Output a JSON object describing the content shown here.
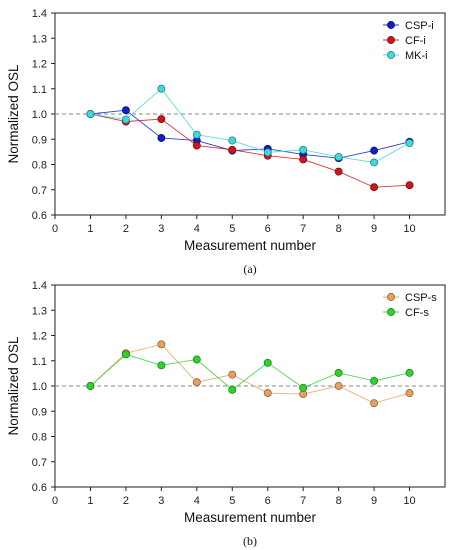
{
  "chart_data": [
    {
      "type": "line",
      "caption": "(a)",
      "xlabel": "Measurement number",
      "ylabel": "Normalized OSL",
      "xlim": [
        0,
        11
      ],
      "ylim": [
        0.6,
        1.4
      ],
      "xticks": [
        0,
        1,
        2,
        3,
        4,
        5,
        6,
        7,
        8,
        9,
        10
      ],
      "yticks": [
        0.6,
        0.7,
        0.8,
        0.9,
        1.0,
        1.1,
        1.2,
        1.3,
        1.4
      ],
      "ytick_labels": [
        "0.6",
        "0.7",
        "0.8",
        "0.9",
        "1.0",
        "1.1",
        "1.2",
        "1.3",
        "1.4"
      ],
      "reference_line": 1.0,
      "legend_position": "top-right",
      "x": [
        1,
        2,
        3,
        4,
        5,
        6,
        7,
        8,
        9,
        10
      ],
      "series": [
        {
          "name": "CSP-i",
          "color": "#1020c8",
          "values": [
            1.0,
            1.015,
            0.905,
            0.895,
            0.855,
            0.862,
            0.84,
            0.825,
            0.855,
            0.89
          ]
        },
        {
          "name": "CF-i",
          "color": "#d0141a",
          "values": [
            1.0,
            0.97,
            0.98,
            0.875,
            0.858,
            0.835,
            0.82,
            0.772,
            0.71,
            0.718
          ]
        },
        {
          "name": "MK-i",
          "color": "#3fd8e0",
          "values": [
            1.0,
            0.978,
            1.1,
            0.918,
            0.895,
            0.848,
            0.858,
            0.83,
            0.808,
            0.885
          ]
        }
      ]
    },
    {
      "type": "line",
      "caption": "(b)",
      "xlabel": "Measurement number",
      "ylabel": "Normalized OSL",
      "xlim": [
        0,
        11
      ],
      "ylim": [
        0.6,
        1.4
      ],
      "xticks": [
        0,
        1,
        2,
        3,
        4,
        5,
        6,
        7,
        8,
        9,
        10
      ],
      "yticks": [
        0.6,
        0.7,
        0.8,
        0.9,
        1.0,
        1.1,
        1.2,
        1.3,
        1.4
      ],
      "ytick_labels": [
        "0.6",
        "0.7",
        "0.8",
        "0.9",
        "1.0",
        "1.1",
        "1.2",
        "1.3",
        "1.4"
      ],
      "reference_line": 1.0,
      "legend_position": "top-right",
      "x": [
        1,
        2,
        3,
        4,
        5,
        6,
        7,
        8,
        9,
        10
      ],
      "series": [
        {
          "name": "CSP-s",
          "color": "#e8a060",
          "values": [
            1.0,
            1.13,
            1.165,
            1.015,
            1.045,
            0.972,
            0.968,
            1.0,
            0.932,
            0.972
          ]
        },
        {
          "name": "CF-s",
          "color": "#2ed42e",
          "values": [
            1.0,
            1.125,
            1.082,
            1.105,
            0.985,
            1.092,
            0.993,
            1.052,
            1.02,
            1.052
          ]
        }
      ]
    }
  ]
}
